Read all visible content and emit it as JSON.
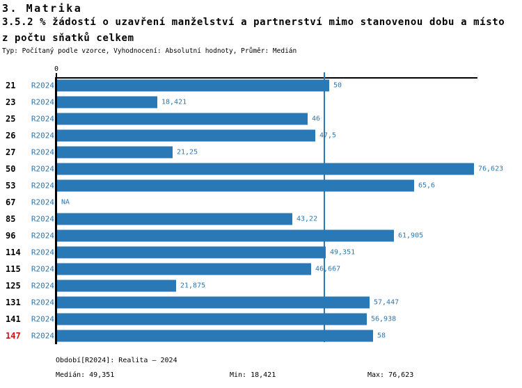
{
  "header": {
    "title": "3. Matrika",
    "subtitle_line1": "3.5.2 % žádostí o uzavření manželství a partnerství mimo stanovenou dobu a místo",
    "subtitle_line2": "z počtu sňatků celkem",
    "meta": "Typ: Počítaný podle vzorce, Vyhodnocení: Absolutní hodnoty, Průměr: Medián"
  },
  "chart_data": {
    "type": "bar",
    "orientation": "horizontal",
    "title": "3.5.2 % žádostí o uzavření manželství a partnerství mimo stanovenou dobu a místo z počtu sňatků celkem",
    "xlim": [
      0,
      77.5
    ],
    "axis_zero_label": "0",
    "grid": false,
    "median_value": 49.351,
    "rows": [
      {
        "id": "21",
        "period": "R2024",
        "value": 50,
        "label": "50",
        "highlight": false
      },
      {
        "id": "23",
        "period": "R2024",
        "value": 18.421,
        "label": "18,421",
        "highlight": false
      },
      {
        "id": "25",
        "period": "R2024",
        "value": 46,
        "label": "46",
        "highlight": false
      },
      {
        "id": "26",
        "period": "R2024",
        "value": 47.5,
        "label": "47,5",
        "highlight": false
      },
      {
        "id": "27",
        "period": "R2024",
        "value": 21.25,
        "label": "21,25",
        "highlight": false
      },
      {
        "id": "50",
        "period": "R2024",
        "value": 76.623,
        "label": "76,623",
        "highlight": false
      },
      {
        "id": "53",
        "period": "R2024",
        "value": 65.6,
        "label": "65,6",
        "highlight": false
      },
      {
        "id": "67",
        "period": "R2024",
        "value": null,
        "label": "NA",
        "highlight": false
      },
      {
        "id": "85",
        "period": "R2024",
        "value": 43.22,
        "label": "43,22",
        "highlight": false
      },
      {
        "id": "96",
        "period": "R2024",
        "value": 61.905,
        "label": "61,905",
        "highlight": false
      },
      {
        "id": "114",
        "period": "R2024",
        "value": 49.351,
        "label": "49,351",
        "highlight": false
      },
      {
        "id": "115",
        "period": "R2024",
        "value": 46.667,
        "label": "46,667",
        "highlight": false
      },
      {
        "id": "125",
        "period": "R2024",
        "value": 21.875,
        "label": "21,875",
        "highlight": false
      },
      {
        "id": "131",
        "period": "R2024",
        "value": 57.447,
        "label": "57,447",
        "highlight": false
      },
      {
        "id": "141",
        "period": "R2024",
        "value": 56.938,
        "label": "56,938",
        "highlight": false
      },
      {
        "id": "147",
        "period": "R2024",
        "value": 58,
        "label": "58",
        "highlight": true
      }
    ],
    "colors": {
      "bar": "#2879b5",
      "median_line": "#2879b5",
      "text_blue": "#2878b4",
      "axis": "#000000",
      "highlight_id": "#d41111"
    }
  },
  "footer": {
    "period_line": "Období[R2024]: Realita – 2024",
    "median": "Medián: 49,351",
    "min": "Min: 18,421",
    "max": "Max: 76,623"
  }
}
